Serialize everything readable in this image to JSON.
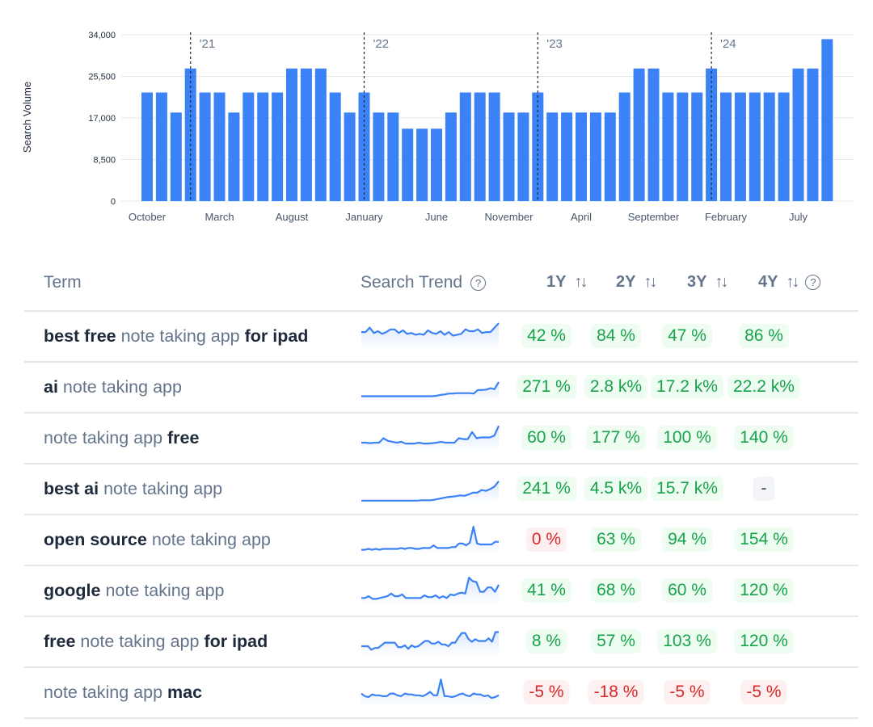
{
  "chart_data": {
    "type": "bar",
    "ylabel": "Search Volume",
    "xlabel": "",
    "ylim": [
      0,
      34000
    ],
    "yticks": [
      "0",
      "8,500",
      "17,000",
      "25,500",
      "34,000"
    ],
    "ytick_values": [
      0,
      8500,
      17000,
      25500,
      34000
    ],
    "grid": true,
    "color": "#3b82f6",
    "categories": [
      "Oct 2020",
      "Nov 2020",
      "Dec 2020",
      "Jan 2021",
      "Feb 2021",
      "Mar 2021",
      "Apr 2021",
      "May 2021",
      "Jun 2021",
      "Jul 2021",
      "Aug 2021",
      "Sep 2021",
      "Oct 2021",
      "Nov 2021",
      "Dec 2021",
      "Jan 2022",
      "Feb 2022",
      "Mar 2022",
      "Apr 2022",
      "May 2022",
      "Jun 2022",
      "Jul 2022",
      "Aug 2022",
      "Sep 2022",
      "Oct 2022",
      "Nov 2022",
      "Dec 2022",
      "Jan 2023",
      "Feb 2023",
      "Mar 2023",
      "Apr 2023",
      "May 2023",
      "Jun 2023",
      "Jul 2023",
      "Aug 2023",
      "Sep 2023",
      "Oct 2023",
      "Nov 2023",
      "Dec 2023",
      "Jan 2024",
      "Feb 2024",
      "Mar 2024",
      "Apr 2024",
      "May 2024",
      "Jun 2024",
      "Jul 2024",
      "Aug 2024",
      "Sep 2024"
    ],
    "values": [
      22200,
      22200,
      18100,
      27100,
      22200,
      22200,
      18100,
      22200,
      22200,
      22200,
      27100,
      27100,
      27100,
      22200,
      18100,
      22200,
      18100,
      18100,
      14800,
      14800,
      14800,
      18100,
      22200,
      22200,
      22200,
      18100,
      18100,
      22200,
      18100,
      18100,
      18100,
      18100,
      18100,
      22200,
      27100,
      27100,
      22200,
      22200,
      22200,
      27100,
      22200,
      22200,
      22200,
      22200,
      22200,
      27100,
      27100,
      33100
    ],
    "xtick_labels": [
      {
        "index": 0,
        "label": "October"
      },
      {
        "index": 5,
        "label": "March"
      },
      {
        "index": 10,
        "label": "August"
      },
      {
        "index": 15,
        "label": "January"
      },
      {
        "index": 20,
        "label": "June"
      },
      {
        "index": 25,
        "label": "November"
      },
      {
        "index": 30,
        "label": "April"
      },
      {
        "index": 35,
        "label": "September"
      },
      {
        "index": 40,
        "label": "February"
      },
      {
        "index": 45,
        "label": "July"
      }
    ],
    "year_markers": [
      {
        "index": 3,
        "label": "'21"
      },
      {
        "index": 15,
        "label": "'22"
      },
      {
        "index": 27,
        "label": "'23"
      },
      {
        "index": 39,
        "label": "'24"
      }
    ]
  },
  "table": {
    "headers": {
      "term": "Term",
      "trend": "Search Trend",
      "y1": "1Y",
      "y2": "2Y",
      "y3": "3Y",
      "y4": "4Y"
    },
    "rows": [
      {
        "term": [
          {
            "t": "best free",
            "b": true
          },
          {
            "t": " note taking app ",
            "b": false
          },
          {
            "t": "for ipad",
            "b": true
          }
        ],
        "trend": [
          40,
          40,
          50,
          38,
          42,
          36,
          40,
          46,
          46,
          38,
          44,
          36,
          38,
          34,
          36,
          34,
          44,
          38,
          36,
          42,
          34,
          40,
          32,
          34,
          36,
          46,
          42,
          42,
          46,
          38,
          40,
          40,
          50,
          60
        ],
        "growth": [
          {
            "v": "42 %",
            "tone": "pos"
          },
          {
            "v": "84 %",
            "tone": "pos"
          },
          {
            "v": "47 %",
            "tone": "pos"
          },
          {
            "v": "86 %",
            "tone": "pos"
          }
        ]
      },
      {
        "term": [
          {
            "t": "ai",
            "b": true
          },
          {
            "t": " note taking app",
            "b": false
          }
        ],
        "trend": [
          10,
          10,
          10,
          10,
          10,
          10,
          10,
          10,
          10,
          10,
          10,
          10,
          10,
          10,
          10,
          10,
          10,
          10,
          11,
          13,
          14,
          16,
          16,
          17,
          17,
          17,
          17,
          16,
          24,
          24,
          25,
          28,
          26,
          42
        ],
        "growth": [
          {
            "v": "271 %",
            "tone": "pos"
          },
          {
            "v": "2.8 k%",
            "tone": "pos"
          },
          {
            "v": "17.2 k%",
            "tone": "pos"
          },
          {
            "v": "22.2 k%",
            "tone": "pos"
          }
        ]
      },
      {
        "term": [
          {
            "t": "note taking app ",
            "b": false
          },
          {
            "t": "free",
            "b": true
          }
        ],
        "trend": [
          20,
          20,
          19,
          20,
          20,
          30,
          24,
          22,
          20,
          22,
          18,
          18,
          18,
          20,
          18,
          18,
          19,
          20,
          22,
          20,
          20,
          20,
          30,
          28,
          28,
          44,
          30,
          32,
          32,
          32,
          36,
          58
        ],
        "growth": [
          {
            "v": "60 %",
            "tone": "pos"
          },
          {
            "v": "177 %",
            "tone": "pos"
          },
          {
            "v": "100 %",
            "tone": "pos"
          },
          {
            "v": "140 %",
            "tone": "pos"
          }
        ]
      },
      {
        "term": [
          {
            "t": "best ai",
            "b": true
          },
          {
            "t": " note taking app",
            "b": false
          }
        ],
        "trend": [
          4,
          4,
          4,
          4,
          4,
          4,
          4,
          4,
          4,
          4,
          4,
          4,
          4,
          4,
          5,
          5,
          5,
          6,
          8,
          10,
          12,
          13,
          14,
          16,
          15,
          18,
          22,
          22,
          28,
          26,
          30,
          36,
          48
        ],
        "growth": [
          {
            "v": "241 %",
            "tone": "pos"
          },
          {
            "v": "4.5 k%",
            "tone": "pos"
          },
          {
            "v": "15.7 k%",
            "tone": "pos"
          },
          {
            "v": "-",
            "tone": "neu"
          }
        ]
      },
      {
        "term": [
          {
            "t": "open source",
            "b": true
          },
          {
            "t": " note taking app",
            "b": false
          }
        ],
        "trend": [
          8,
          8,
          10,
          8,
          10,
          8,
          10,
          10,
          10,
          10,
          10,
          12,
          10,
          12,
          12,
          10,
          10,
          12,
          12,
          12,
          18,
          12,
          12,
          12,
          12,
          14,
          14,
          22,
          22,
          18,
          24,
          60,
          22,
          20,
          20,
          20,
          20,
          26,
          26
        ],
        "growth": [
          {
            "v": "0 %",
            "tone": "neg"
          },
          {
            "v": "63 %",
            "tone": "pos"
          },
          {
            "v": "94 %",
            "tone": "pos"
          },
          {
            "v": "154 %",
            "tone": "pos"
          }
        ]
      },
      {
        "term": [
          {
            "t": "google",
            "b": true
          },
          {
            "t": " note taking app",
            "b": false
          }
        ],
        "trend": [
          14,
          14,
          18,
          12,
          12,
          14,
          16,
          18,
          24,
          18,
          18,
          22,
          14,
          14,
          14,
          14,
          14,
          20,
          16,
          16,
          20,
          14,
          18,
          14,
          22,
          20,
          24,
          26,
          24,
          60,
          52,
          50,
          28,
          28,
          38,
          38,
          28,
          44
        ],
        "growth": [
          {
            "v": "41 %",
            "tone": "pos"
          },
          {
            "v": "68 %",
            "tone": "pos"
          },
          {
            "v": "60 %",
            "tone": "pos"
          },
          {
            "v": "120 %",
            "tone": "pos"
          }
        ]
      },
      {
        "term": [
          {
            "t": "free",
            "b": true
          },
          {
            "t": " note taking app ",
            "b": false
          },
          {
            "t": "for ipad",
            "b": true
          }
        ],
        "trend": [
          20,
          20,
          20,
          12,
          16,
          16,
          22,
          28,
          28,
          28,
          28,
          18,
          18,
          22,
          14,
          22,
          18,
          20,
          26,
          32,
          32,
          26,
          26,
          30,
          24,
          24,
          20,
          28,
          28,
          40,
          50,
          50,
          36,
          30,
          36,
          32,
          32,
          32,
          38,
          30,
          52,
          52
        ],
        "growth": [
          {
            "v": "8 %",
            "tone": "pos"
          },
          {
            "v": "57 %",
            "tone": "pos"
          },
          {
            "v": "103 %",
            "tone": "pos"
          },
          {
            "v": "120 %",
            "tone": "pos"
          }
        ]
      },
      {
        "term": [
          {
            "t": "note taking app ",
            "b": false
          },
          {
            "t": "mac",
            "b": true
          }
        ],
        "trend": [
          28,
          22,
          20,
          26,
          24,
          24,
          22,
          22,
          28,
          28,
          24,
          22,
          28,
          26,
          26,
          24,
          24,
          22,
          26,
          32,
          24,
          24,
          60,
          22,
          22,
          20,
          22,
          26,
          28,
          24,
          22,
          28,
          26,
          26,
          22,
          24,
          18,
          20,
          24
        ],
        "growth": [
          {
            "v": "-5 %",
            "tone": "neg"
          },
          {
            "v": "-18 %",
            "tone": "neg"
          },
          {
            "v": "-5 %",
            "tone": "neg"
          },
          {
            "v": "-5 %",
            "tone": "neg"
          }
        ]
      }
    ]
  }
}
